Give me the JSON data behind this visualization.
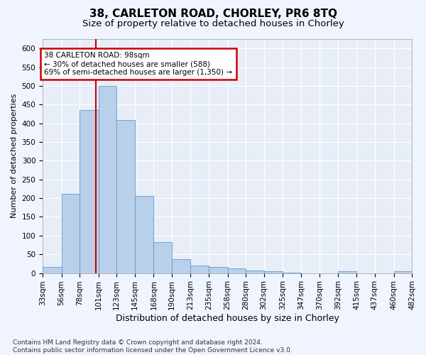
{
  "title": "38, CARLETON ROAD, CHORLEY, PR6 8TQ",
  "subtitle": "Size of property relative to detached houses in Chorley",
  "xlabel": "Distribution of detached houses by size in Chorley",
  "ylabel": "Number of detached properties",
  "bar_color": "#b8d0ea",
  "bar_edge_color": "#6699cc",
  "background_color": "#e8eef8",
  "grid_color": "#ffffff",
  "fig_background": "#f0f4ff",
  "property_size": 98,
  "property_line_color": "#cc0000",
  "annotation_text": "38 CARLETON ROAD: 98sqm\n← 30% of detached houses are smaller (588)\n69% of semi-detached houses are larger (1,350) →",
  "annotation_box_facecolor": "#ffffff",
  "annotation_box_edgecolor": "#cc0000",
  "bin_edges": [
    33,
    56,
    78,
    101,
    123,
    145,
    168,
    190,
    213,
    235,
    258,
    280,
    302,
    325,
    347,
    370,
    392,
    415,
    437,
    460,
    482
  ],
  "values": [
    17,
    212,
    435,
    500,
    408,
    205,
    83,
    37,
    20,
    17,
    12,
    7,
    5,
    2,
    0,
    0,
    5,
    0,
    0,
    5
  ],
  "ylim": [
    0,
    625
  ],
  "yticks": [
    0,
    50,
    100,
    150,
    200,
    250,
    300,
    350,
    400,
    450,
    500,
    550,
    600
  ],
  "footer": "Contains HM Land Registry data © Crown copyright and database right 2024.\nContains public sector information licensed under the Open Government Licence v3.0.",
  "title_fontsize": 11,
  "subtitle_fontsize": 9.5,
  "xlabel_fontsize": 9,
  "ylabel_fontsize": 8,
  "tick_fontsize": 7.5,
  "footer_fontsize": 6.5
}
